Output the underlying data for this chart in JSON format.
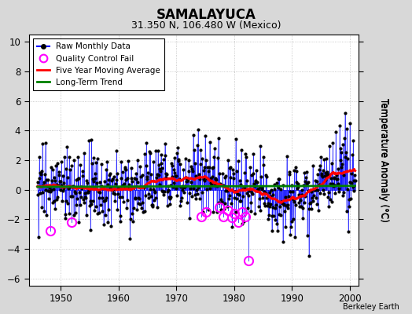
{
  "title": "SAMALAYUCA",
  "subtitle": "31.350 N, 106.480 W (Mexico)",
  "ylabel": "Temperature Anomaly (°C)",
  "credit": "Berkeley Earth",
  "xlim": [
    1944.5,
    2001.5
  ],
  "ylim": [
    -6.5,
    10.5
  ],
  "yticks": [
    -6,
    -4,
    -2,
    0,
    2,
    4,
    6,
    8,
    10
  ],
  "xticks": [
    1950,
    1960,
    1970,
    1980,
    1990,
    2000
  ],
  "outer_bg": "#d8d8d8",
  "plot_bg": "#ffffff",
  "seed": 12345
}
